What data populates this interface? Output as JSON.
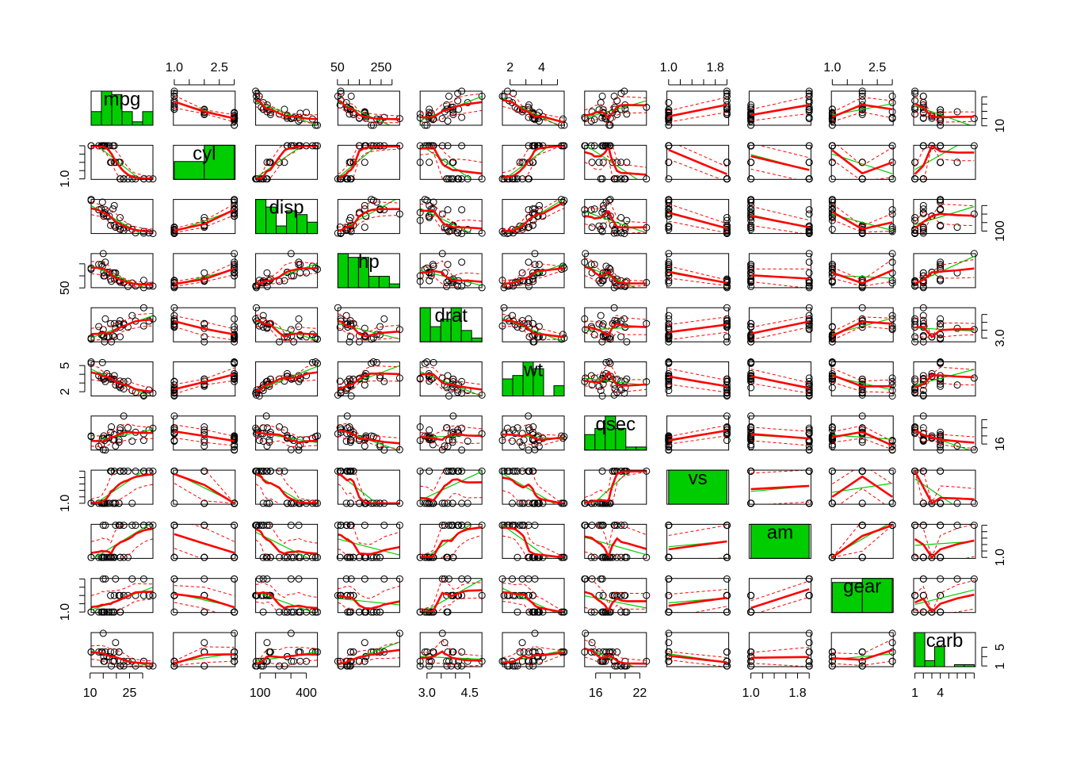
{
  "chart_data": {
    "type": "scatter",
    "title": "",
    "matrix_type": "scatterplot-matrix",
    "diagonal": "histogram",
    "variables": [
      "mpg",
      "cyl",
      "disp",
      "hp",
      "drat",
      "wt",
      "qsec",
      "vs",
      "am",
      "gear",
      "carb"
    ],
    "ranges": {
      "mpg": [
        10.4,
        33.9
      ],
      "cyl": [
        0.97,
        3.03
      ],
      "disp": [
        71.1,
        472
      ],
      "hp": [
        52,
        335
      ],
      "drat": [
        2.76,
        4.93
      ],
      "wt": [
        1.513,
        5.424
      ],
      "qsec": [
        14.5,
        22.9
      ],
      "vs": [
        0.97,
        2.03
      ],
      "am": [
        0.97,
        2.03
      ],
      "gear": [
        0.97,
        3.03
      ],
      "carb": [
        0.85,
        8.15
      ]
    },
    "axes": {
      "top": [
        {
          "col": 1,
          "ticks": [
            1.0,
            1.5,
            2.0,
            2.5,
            3.0
          ],
          "labels": [
            {
              "value": 1.0,
              "text": "1.0"
            },
            {
              "value": 2.5,
              "text": "2.5"
            }
          ]
        },
        {
          "col": 3,
          "ticks": [
            50,
            100,
            150,
            200,
            250,
            300
          ],
          "labels": [
            {
              "value": 50,
              "text": "50"
            },
            {
              "value": 250,
              "text": "250"
            }
          ]
        },
        {
          "col": 5,
          "ticks": [
            2,
            3,
            4,
            5
          ],
          "labels": [
            {
              "value": 2,
              "text": "2"
            },
            {
              "value": 4,
              "text": "4"
            }
          ]
        },
        {
          "col": 7,
          "ticks": [
            1.0,
            1.2,
            1.4,
            1.6,
            1.8,
            2.0
          ],
          "labels": [
            {
              "value": 1.0,
              "text": "1.0"
            },
            {
              "value": 1.8,
              "text": "1.8"
            }
          ]
        },
        {
          "col": 9,
          "ticks": [
            1.0,
            1.5,
            2.0,
            2.5,
            3.0
          ],
          "labels": [
            {
              "value": 1.0,
              "text": "1.0"
            },
            {
              "value": 2.5,
              "text": "2.5"
            }
          ]
        }
      ],
      "bottom": [
        {
          "col": 0,
          "ticks": [
            10,
            15,
            20,
            25,
            30
          ],
          "labels": [
            {
              "value": 10,
              "text": "10"
            },
            {
              "value": 25,
              "text": "25"
            }
          ]
        },
        {
          "col": 2,
          "ticks": [
            100,
            200,
            300,
            400
          ],
          "labels": [
            {
              "value": 100,
              "text": "100"
            },
            {
              "value": 400,
              "text": "400"
            }
          ]
        },
        {
          "col": 4,
          "ticks": [
            3.0,
            3.5,
            4.0,
            4.5
          ],
          "labels": [
            {
              "value": 3.0,
              "text": "3.0"
            },
            {
              "value": 4.5,
              "text": "4.5"
            }
          ]
        },
        {
          "col": 6,
          "ticks": [
            16,
            18,
            20,
            22
          ],
          "labels": [
            {
              "value": 16,
              "text": "16"
            },
            {
              "value": 22,
              "text": "22"
            }
          ]
        },
        {
          "col": 8,
          "ticks": [
            1.0,
            1.2,
            1.4,
            1.6,
            1.8,
            2.0
          ],
          "labels": [
            {
              "value": 1.0,
              "text": "1.0"
            },
            {
              "value": 1.8,
              "text": "1.8"
            }
          ]
        },
        {
          "col": 10,
          "ticks": [
            1,
            2,
            3,
            4,
            5,
            6,
            7,
            8
          ],
          "labels": [
            {
              "value": 1,
              "text": "1"
            },
            {
              "value": 4,
              "text": "4"
            }
          ]
        }
      ],
      "left": [
        {
          "row": 1,
          "ticks": [
            1.0,
            1.5,
            2.0,
            2.5,
            3.0
          ],
          "labels": [
            {
              "value": 1.0,
              "text": "1.0"
            }
          ]
        },
        {
          "row": 3,
          "ticks": [
            50,
            150,
            250
          ],
          "labels": [
            {
              "value": 50,
              "text": "50"
            }
          ]
        },
        {
          "row": 5,
          "ticks": [
            2,
            3,
            4,
            5
          ],
          "labels": [
            {
              "value": 2,
              "text": "2"
            },
            {
              "value": 5,
              "text": "5"
            }
          ]
        },
        {
          "row": 7,
          "ticks": [
            1.0,
            1.2,
            1.4,
            1.6,
            1.8,
            2.0
          ],
          "labels": [
            {
              "value": 1.0,
              "text": "1.0"
            }
          ]
        },
        {
          "row": 9,
          "ticks": [
            1.0,
            1.5,
            2.0,
            2.5,
            3.0
          ],
          "labels": [
            {
              "value": 1.0,
              "text": "1.0"
            }
          ]
        }
      ],
      "right": [
        {
          "row": 0,
          "ticks": [
            10,
            15,
            20,
            25,
            30
          ],
          "labels": [
            {
              "value": 10,
              "text": "10"
            }
          ]
        },
        {
          "row": 2,
          "ticks": [
            100,
            200,
            300,
            400
          ],
          "labels": [
            {
              "value": 100,
              "text": "100"
            }
          ]
        },
        {
          "row": 4,
          "ticks": [
            3.0,
            3.5,
            4.0,
            4.5
          ],
          "labels": [
            {
              "value": 3.0,
              "text": "3.0"
            }
          ]
        },
        {
          "row": 6,
          "ticks": [
            16,
            18,
            20,
            22
          ],
          "labels": [
            {
              "value": 16,
              "text": "16"
            }
          ]
        },
        {
          "row": 8,
          "ticks": [
            1.0,
            1.2,
            1.4,
            1.6,
            1.8,
            2.0
          ],
          "labels": [
            {
              "value": 1.0,
              "text": "1.0"
            }
          ]
        },
        {
          "row": 10,
          "ticks": [
            1,
            3,
            5
          ],
          "labels": [
            {
              "value": 1,
              "text": "1"
            },
            {
              "value": 5,
              "text": "5"
            }
          ]
        }
      ]
    },
    "rows": [
      {
        "mpg": 21.0,
        "cyl": 2,
        "disp": 160,
        "hp": 110,
        "drat": 3.9,
        "wt": 2.62,
        "qsec": 16.46,
        "vs": 1,
        "am": 2,
        "gear": 2,
        "carb": 4
      },
      {
        "mpg": 21.0,
        "cyl": 2,
        "disp": 160,
        "hp": 110,
        "drat": 3.9,
        "wt": 2.875,
        "qsec": 17.02,
        "vs": 1,
        "am": 2,
        "gear": 2,
        "carb": 4
      },
      {
        "mpg": 22.8,
        "cyl": 1,
        "disp": 108,
        "hp": 93,
        "drat": 3.85,
        "wt": 2.32,
        "qsec": 18.61,
        "vs": 2,
        "am": 2,
        "gear": 2,
        "carb": 1
      },
      {
        "mpg": 21.4,
        "cyl": 2,
        "disp": 258,
        "hp": 110,
        "drat": 3.08,
        "wt": 3.215,
        "qsec": 19.44,
        "vs": 2,
        "am": 1,
        "gear": 1,
        "carb": 1
      },
      {
        "mpg": 18.7,
        "cyl": 3,
        "disp": 360,
        "hp": 175,
        "drat": 3.15,
        "wt": 3.44,
        "qsec": 17.02,
        "vs": 1,
        "am": 1,
        "gear": 1,
        "carb": 2
      },
      {
        "mpg": 18.1,
        "cyl": 2,
        "disp": 225,
        "hp": 105,
        "drat": 2.76,
        "wt": 3.46,
        "qsec": 20.22,
        "vs": 2,
        "am": 1,
        "gear": 1,
        "carb": 1
      },
      {
        "mpg": 14.3,
        "cyl": 3,
        "disp": 360,
        "hp": 245,
        "drat": 3.21,
        "wt": 3.57,
        "qsec": 15.84,
        "vs": 1,
        "am": 1,
        "gear": 1,
        "carb": 4
      },
      {
        "mpg": 24.4,
        "cyl": 1,
        "disp": 146.7,
        "hp": 62,
        "drat": 3.69,
        "wt": 3.19,
        "qsec": 20.0,
        "vs": 2,
        "am": 1,
        "gear": 2,
        "carb": 2
      },
      {
        "mpg": 22.8,
        "cyl": 1,
        "disp": 140.8,
        "hp": 95,
        "drat": 3.92,
        "wt": 3.15,
        "qsec": 22.9,
        "vs": 2,
        "am": 1,
        "gear": 2,
        "carb": 2
      },
      {
        "mpg": 19.2,
        "cyl": 2,
        "disp": 167.6,
        "hp": 123,
        "drat": 3.92,
        "wt": 3.44,
        "qsec": 18.3,
        "vs": 2,
        "am": 1,
        "gear": 2,
        "carb": 4
      },
      {
        "mpg": 17.8,
        "cyl": 2,
        "disp": 167.6,
        "hp": 123,
        "drat": 3.92,
        "wt": 3.44,
        "qsec": 18.9,
        "vs": 2,
        "am": 1,
        "gear": 2,
        "carb": 4
      },
      {
        "mpg": 16.4,
        "cyl": 3,
        "disp": 275.8,
        "hp": 180,
        "drat": 3.07,
        "wt": 4.07,
        "qsec": 17.4,
        "vs": 1,
        "am": 1,
        "gear": 1,
        "carb": 3
      },
      {
        "mpg": 17.3,
        "cyl": 3,
        "disp": 275.8,
        "hp": 180,
        "drat": 3.07,
        "wt": 3.73,
        "qsec": 17.6,
        "vs": 1,
        "am": 1,
        "gear": 1,
        "carb": 3
      },
      {
        "mpg": 15.2,
        "cyl": 3,
        "disp": 275.8,
        "hp": 180,
        "drat": 3.07,
        "wt": 3.78,
        "qsec": 18.0,
        "vs": 1,
        "am": 1,
        "gear": 1,
        "carb": 3
      },
      {
        "mpg": 10.4,
        "cyl": 3,
        "disp": 472,
        "hp": 205,
        "drat": 2.93,
        "wt": 5.25,
        "qsec": 17.98,
        "vs": 1,
        "am": 1,
        "gear": 1,
        "carb": 4
      },
      {
        "mpg": 10.4,
        "cyl": 3,
        "disp": 460,
        "hp": 215,
        "drat": 3.0,
        "wt": 5.424,
        "qsec": 17.82,
        "vs": 1,
        "am": 1,
        "gear": 1,
        "carb": 4
      },
      {
        "mpg": 14.7,
        "cyl": 3,
        "disp": 440,
        "hp": 230,
        "drat": 3.23,
        "wt": 5.345,
        "qsec": 17.42,
        "vs": 1,
        "am": 1,
        "gear": 1,
        "carb": 4
      },
      {
        "mpg": 32.4,
        "cyl": 1,
        "disp": 78.7,
        "hp": 66,
        "drat": 4.08,
        "wt": 2.2,
        "qsec": 19.47,
        "vs": 2,
        "am": 2,
        "gear": 2,
        "carb": 1
      },
      {
        "mpg": 30.4,
        "cyl": 1,
        "disp": 75.7,
        "hp": 52,
        "drat": 4.93,
        "wt": 1.615,
        "qsec": 18.52,
        "vs": 2,
        "am": 2,
        "gear": 2,
        "carb": 2
      },
      {
        "mpg": 33.9,
        "cyl": 1,
        "disp": 71.1,
        "hp": 65,
        "drat": 4.22,
        "wt": 1.835,
        "qsec": 19.9,
        "vs": 2,
        "am": 2,
        "gear": 2,
        "carb": 1
      },
      {
        "mpg": 21.5,
        "cyl": 1,
        "disp": 120.1,
        "hp": 97,
        "drat": 3.7,
        "wt": 2.465,
        "qsec": 20.01,
        "vs": 2,
        "am": 1,
        "gear": 1,
        "carb": 1
      },
      {
        "mpg": 15.5,
        "cyl": 3,
        "disp": 318,
        "hp": 150,
        "drat": 2.76,
        "wt": 3.52,
        "qsec": 16.87,
        "vs": 1,
        "am": 1,
        "gear": 1,
        "carb": 2
      },
      {
        "mpg": 15.2,
        "cyl": 3,
        "disp": 304,
        "hp": 150,
        "drat": 3.15,
        "wt": 3.435,
        "qsec": 17.3,
        "vs": 1,
        "am": 1,
        "gear": 1,
        "carb": 2
      },
      {
        "mpg": 13.3,
        "cyl": 3,
        "disp": 350,
        "hp": 245,
        "drat": 3.73,
        "wt": 3.84,
        "qsec": 15.41,
        "vs": 1,
        "am": 1,
        "gear": 1,
        "carb": 4
      },
      {
        "mpg": 19.2,
        "cyl": 3,
        "disp": 400,
        "hp": 175,
        "drat": 3.08,
        "wt": 3.845,
        "qsec": 17.05,
        "vs": 1,
        "am": 1,
        "gear": 1,
        "carb": 2
      },
      {
        "mpg": 27.3,
        "cyl": 1,
        "disp": 79,
        "hp": 66,
        "drat": 4.08,
        "wt": 1.935,
        "qsec": 18.9,
        "vs": 2,
        "am": 2,
        "gear": 2,
        "carb": 1
      },
      {
        "mpg": 26.0,
        "cyl": 1,
        "disp": 120.3,
        "hp": 91,
        "drat": 4.43,
        "wt": 2.14,
        "qsec": 16.7,
        "vs": 1,
        "am": 2,
        "gear": 3,
        "carb": 2
      },
      {
        "mpg": 30.4,
        "cyl": 1,
        "disp": 95.1,
        "hp": 113,
        "drat": 3.77,
        "wt": 1.513,
        "qsec": 16.9,
        "vs": 2,
        "am": 2,
        "gear": 3,
        "carb": 2
      },
      {
        "mpg": 15.8,
        "cyl": 3,
        "disp": 351,
        "hp": 264,
        "drat": 4.22,
        "wt": 3.17,
        "qsec": 14.5,
        "vs": 1,
        "am": 2,
        "gear": 3,
        "carb": 4
      },
      {
        "mpg": 19.7,
        "cyl": 2,
        "disp": 145,
        "hp": 175,
        "drat": 3.62,
        "wt": 2.77,
        "qsec": 15.5,
        "vs": 1,
        "am": 2,
        "gear": 3,
        "carb": 6
      },
      {
        "mpg": 15.0,
        "cyl": 3,
        "disp": 301,
        "hp": 335,
        "drat": 3.54,
        "wt": 3.57,
        "qsec": 14.6,
        "vs": 1,
        "am": 2,
        "gear": 3,
        "carb": 8
      },
      {
        "mpg": 21.4,
        "cyl": 1,
        "disp": 121,
        "hp": 109,
        "drat": 4.11,
        "wt": 2.78,
        "qsec": 18.6,
        "vs": 2,
        "am": 2,
        "gear": 2,
        "carb": 2
      }
    ],
    "colors": {
      "bar_fill": "#00CD00",
      "linear_fit": "#00CD00",
      "smooth_fit": "#FF0000",
      "points": "#000000",
      "frame": "#000000"
    }
  }
}
